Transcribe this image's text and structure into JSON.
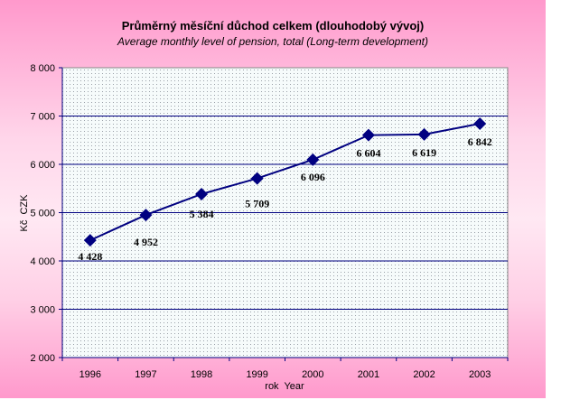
{
  "chart_data": {
    "type": "line",
    "title": "Průměrný měsíční důchod celkem (dlouhodobý vývoj)",
    "subtitle": "Average monthly level of pension, total (Long-term development)",
    "xlabel": "rok  Year",
    "ylabel": "Kč  CZK",
    "categories": [
      "1996",
      "1997",
      "1998",
      "1999",
      "2000",
      "2001",
      "2002",
      "2003"
    ],
    "values": [
      4428,
      4952,
      5384,
      5709,
      6096,
      6604,
      6619,
      6842
    ],
    "data_labels": [
      "4 428",
      "4 952",
      "5 384",
      "5 709",
      "6 096",
      "6 604",
      "6 619",
      "6 842"
    ],
    "ylim": [
      2000,
      8000
    ],
    "yticks": [
      2000,
      3000,
      4000,
      5000,
      6000,
      7000,
      8000
    ],
    "ytick_labels": [
      "2 000",
      "3 000",
      "4 000",
      "5 000",
      "6 000",
      "7 000",
      "8 000"
    ],
    "grid": true,
    "legend": "none",
    "colors": {
      "line": "#000080",
      "marker": "#000080",
      "grid": "#000080"
    }
  }
}
